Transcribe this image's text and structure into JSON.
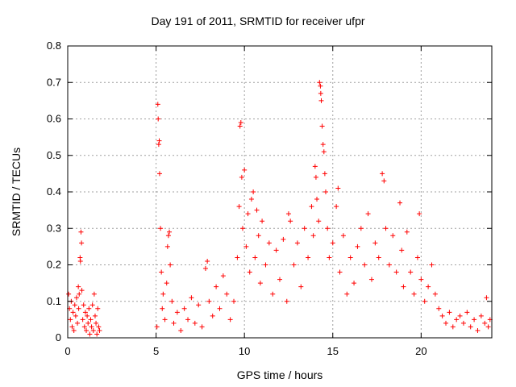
{
  "chart_data": {
    "type": "scatter",
    "title": "Day 191 of 2011, SRMTID for receiver ufpr",
    "xlabel": "GPS time / hours",
    "ylabel": "SRMTID / TECUs",
    "xlim": [
      0,
      24
    ],
    "ylim": [
      0,
      0.8
    ],
    "xticks": [
      0,
      5,
      10,
      15,
      20
    ],
    "yticks": [
      0,
      0.1,
      0.2,
      0.3,
      0.4,
      0.5,
      0.6,
      0.7,
      0.8
    ],
    "xtick_labels": [
      "0",
      "5",
      "10",
      "15",
      "20"
    ],
    "ytick_labels": [
      "0",
      "0.1",
      "0.2",
      "0.3",
      "0.4",
      "0.5",
      "0.6",
      "0.7",
      "0.8"
    ],
    "grid": true,
    "marker": "+",
    "color": "#ff0000",
    "series": [
      {
        "name": "SRMTID",
        "points": [
          [
            0.05,
            0.12
          ],
          [
            0.1,
            0.08
          ],
          [
            0.15,
            0.05
          ],
          [
            0.2,
            0.1
          ],
          [
            0.25,
            0.03
          ],
          [
            0.3,
            0.07
          ],
          [
            0.35,
            0.02
          ],
          [
            0.4,
            0.09
          ],
          [
            0.45,
            0.06
          ],
          [
            0.5,
            0.11
          ],
          [
            0.55,
            0.04
          ],
          [
            0.6,
            0.14
          ],
          [
            0.62,
            0.08
          ],
          [
            0.65,
            0.12
          ],
          [
            0.7,
            0.22
          ],
          [
            0.72,
            0.21
          ],
          [
            0.75,
            0.29
          ],
          [
            0.78,
            0.26
          ],
          [
            0.8,
            0.13
          ],
          [
            0.85,
            0.05
          ],
          [
            0.9,
            0.09
          ],
          [
            0.95,
            0.03
          ],
          [
            1.0,
            0.07
          ],
          [
            1.05,
            0.02
          ],
          [
            1.1,
            0.06
          ],
          [
            1.15,
            0.04
          ],
          [
            1.2,
            0.08
          ],
          [
            1.25,
            0.01
          ],
          [
            1.3,
            0.05
          ],
          [
            1.35,
            0.03
          ],
          [
            1.4,
            0.09
          ],
          [
            1.45,
            0.02
          ],
          [
            1.5,
            0.12
          ],
          [
            1.55,
            0.06
          ],
          [
            1.6,
            0.04
          ],
          [
            1.65,
            0.01
          ],
          [
            1.7,
            0.08
          ],
          [
            1.75,
            0.03
          ],
          [
            1.8,
            0.02
          ],
          [
            5.05,
            0.03
          ],
          [
            5.1,
            0.64
          ],
          [
            5.12,
            0.6
          ],
          [
            5.15,
            0.53
          ],
          [
            5.18,
            0.54
          ],
          [
            5.2,
            0.45
          ],
          [
            5.25,
            0.3
          ],
          [
            5.3,
            0.18
          ],
          [
            5.35,
            0.08
          ],
          [
            5.4,
            0.12
          ],
          [
            5.5,
            0.05
          ],
          [
            5.6,
            0.15
          ],
          [
            5.65,
            0.25
          ],
          [
            5.7,
            0.28
          ],
          [
            5.75,
            0.29
          ],
          [
            5.8,
            0.2
          ],
          [
            5.9,
            0.1
          ],
          [
            6.0,
            0.04
          ],
          [
            6.2,
            0.07
          ],
          [
            6.4,
            0.02
          ],
          [
            6.6,
            0.08
          ],
          [
            6.8,
            0.05
          ],
          [
            7.0,
            0.11
          ],
          [
            7.2,
            0.04
          ],
          [
            7.4,
            0.09
          ],
          [
            7.6,
            0.03
          ],
          [
            7.8,
            0.19
          ],
          [
            7.9,
            0.21
          ],
          [
            8.0,
            0.1
          ],
          [
            8.2,
            0.06
          ],
          [
            8.4,
            0.14
          ],
          [
            8.6,
            0.08
          ],
          [
            8.8,
            0.17
          ],
          [
            9.0,
            0.12
          ],
          [
            9.2,
            0.05
          ],
          [
            9.4,
            0.1
          ],
          [
            9.6,
            0.22
          ],
          [
            9.7,
            0.36
          ],
          [
            9.75,
            0.58
          ],
          [
            9.8,
            0.59
          ],
          [
            9.85,
            0.44
          ],
          [
            9.9,
            0.3
          ],
          [
            10.0,
            0.46
          ],
          [
            10.1,
            0.25
          ],
          [
            10.2,
            0.34
          ],
          [
            10.3,
            0.18
          ],
          [
            10.4,
            0.38
          ],
          [
            10.5,
            0.4
          ],
          [
            10.6,
            0.22
          ],
          [
            10.7,
            0.35
          ],
          [
            10.8,
            0.28
          ],
          [
            10.9,
            0.15
          ],
          [
            11.0,
            0.32
          ],
          [
            11.2,
            0.2
          ],
          [
            11.4,
            0.26
          ],
          [
            11.6,
            0.12
          ],
          [
            11.8,
            0.24
          ],
          [
            12.0,
            0.16
          ],
          [
            12.2,
            0.27
          ],
          [
            12.4,
            0.1
          ],
          [
            12.5,
            0.34
          ],
          [
            12.6,
            0.32
          ],
          [
            12.8,
            0.2
          ],
          [
            13.0,
            0.26
          ],
          [
            13.2,
            0.14
          ],
          [
            13.4,
            0.3
          ],
          [
            13.6,
            0.22
          ],
          [
            13.8,
            0.36
          ],
          [
            13.9,
            0.28
          ],
          [
            14.0,
            0.47
          ],
          [
            14.05,
            0.44
          ],
          [
            14.1,
            0.38
          ],
          [
            14.2,
            0.32
          ],
          [
            14.25,
            0.7
          ],
          [
            14.3,
            0.69
          ],
          [
            14.32,
            0.67
          ],
          [
            14.35,
            0.65
          ],
          [
            14.4,
            0.58
          ],
          [
            14.45,
            0.53
          ],
          [
            14.5,
            0.51
          ],
          [
            14.55,
            0.45
          ],
          [
            14.6,
            0.4
          ],
          [
            14.7,
            0.3
          ],
          [
            14.8,
            0.22
          ],
          [
            15.0,
            0.26
          ],
          [
            15.2,
            0.36
          ],
          [
            15.3,
            0.41
          ],
          [
            15.4,
            0.18
          ],
          [
            15.6,
            0.28
          ],
          [
            15.8,
            0.12
          ],
          [
            16.0,
            0.22
          ],
          [
            16.2,
            0.15
          ],
          [
            16.4,
            0.25
          ],
          [
            16.6,
            0.3
          ],
          [
            16.8,
            0.2
          ],
          [
            17.0,
            0.34
          ],
          [
            17.2,
            0.16
          ],
          [
            17.4,
            0.26
          ],
          [
            17.6,
            0.22
          ],
          [
            17.8,
            0.45
          ],
          [
            17.9,
            0.43
          ],
          [
            18.0,
            0.3
          ],
          [
            18.2,
            0.2
          ],
          [
            18.4,
            0.28
          ],
          [
            18.6,
            0.18
          ],
          [
            18.8,
            0.37
          ],
          [
            18.9,
            0.24
          ],
          [
            19.0,
            0.14
          ],
          [
            19.2,
            0.29
          ],
          [
            19.4,
            0.18
          ],
          [
            19.6,
            0.12
          ],
          [
            19.8,
            0.22
          ],
          [
            19.9,
            0.34
          ],
          [
            20.0,
            0.16
          ],
          [
            20.2,
            0.1
          ],
          [
            20.4,
            0.14
          ],
          [
            20.6,
            0.2
          ],
          [
            20.8,
            0.12
          ],
          [
            21.0,
            0.08
          ],
          [
            21.2,
            0.06
          ],
          [
            21.4,
            0.04
          ],
          [
            21.6,
            0.07
          ],
          [
            21.8,
            0.03
          ],
          [
            22.0,
            0.05
          ],
          [
            22.2,
            0.06
          ],
          [
            22.4,
            0.04
          ],
          [
            22.6,
            0.07
          ],
          [
            22.8,
            0.03
          ],
          [
            23.0,
            0.05
          ],
          [
            23.2,
            0.02
          ],
          [
            23.4,
            0.06
          ],
          [
            23.6,
            0.04
          ],
          [
            23.7,
            0.11
          ],
          [
            23.8,
            0.03
          ],
          [
            23.9,
            0.05
          ]
        ]
      }
    ]
  }
}
